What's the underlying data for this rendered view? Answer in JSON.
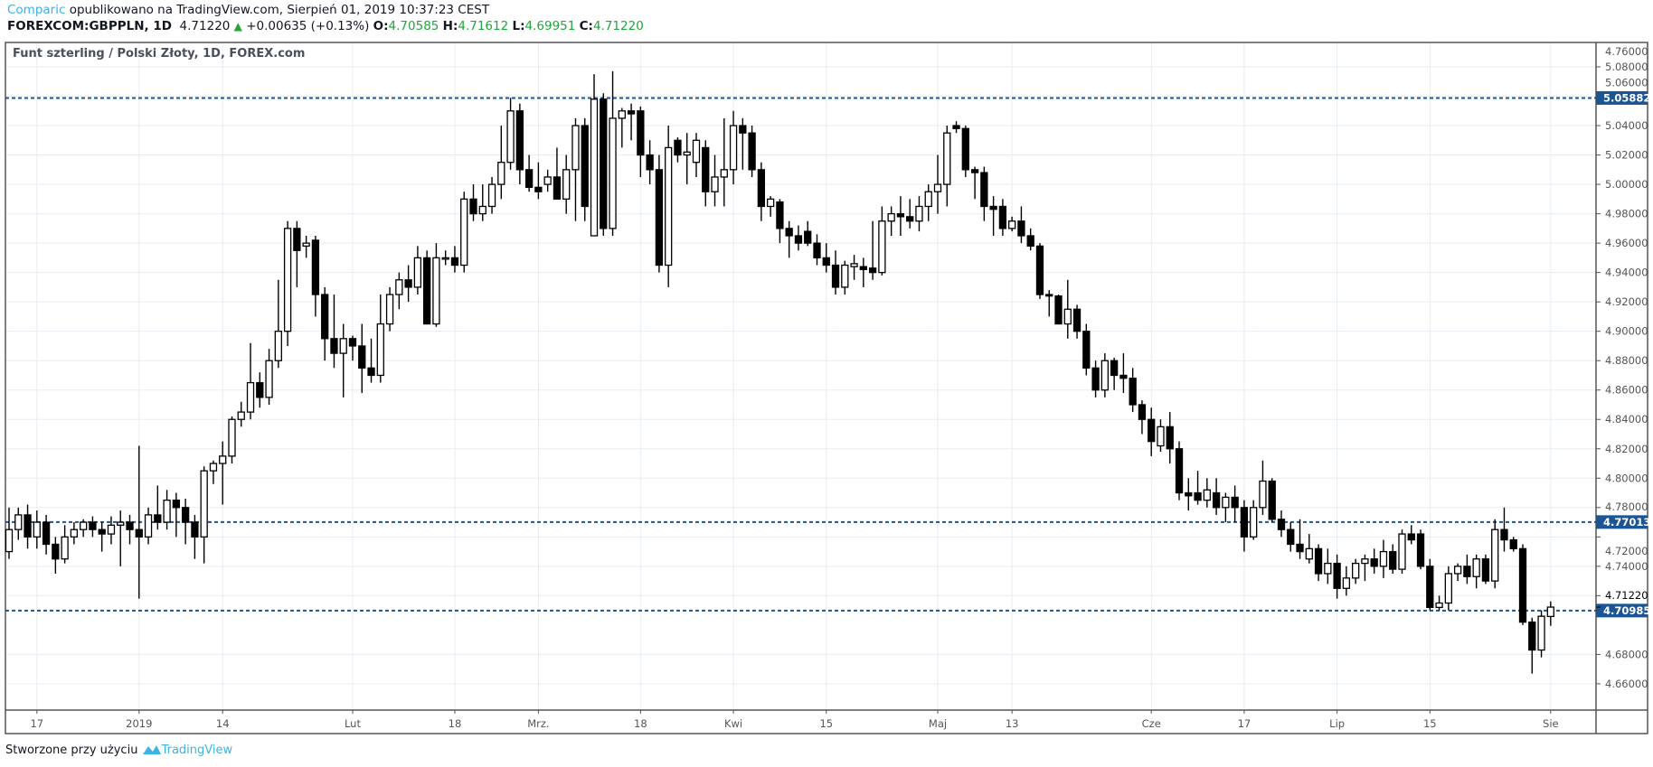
{
  "header": {
    "author": "Comparic",
    "published": "opublikowano na TradingView.com, Sierpień 01, 2019 10:37:23 CEST",
    "symbol": "FOREXCOM:GBPPLN, 1D",
    "last": "4.71220",
    "change": "+0.00635 (+0.13%)",
    "o_label": "O:",
    "o": "4.70585",
    "h_label": "H:",
    "h": "4.71612",
    "l_label": "L:",
    "l": "4.69951",
    "c_label": "C:",
    "c": "4.71220"
  },
  "footer": {
    "text": "Stworzone przy użyciu",
    "brand": "TradingView"
  },
  "colors": {
    "up_fill": "#ffffff",
    "down_fill": "#000000",
    "level": "#1c5594",
    "grid": "#e6edf3",
    "brand": "#3bb3e4",
    "green": "#1fa63a"
  },
  "chart_data": {
    "type": "candlestick",
    "title": "Funt szterling / Polski Złoty, 1D, FOREX.com",
    "ylim": [
      4.645,
      5.096
    ],
    "y_ticks": [
      "5.08000",
      "5.06000",
      "5.04000",
      "5.02000",
      "5.00000",
      "4.98000",
      "4.96000",
      "4.94000",
      "4.92000",
      "4.90000",
      "4.88000",
      "4.86000",
      "4.84000",
      "4.82000",
      "4.80000",
      "4.78000",
      "4.76000",
      "4.74000",
      "4.72000",
      "4.68000",
      "4.66000"
    ],
    "x_ticks": [
      {
        "label": "17",
        "index": 3
      },
      {
        "label": "2019",
        "index": 14
      },
      {
        "label": "14",
        "index": 23
      },
      {
        "label": "Lut",
        "index": 37
      },
      {
        "label": "18",
        "index": 48
      },
      {
        "label": "Mrz.",
        "index": 57
      },
      {
        "label": "18",
        "index": 68
      },
      {
        "label": "Kwi",
        "index": 78
      },
      {
        "label": "15",
        "index": 88
      },
      {
        "label": "Maj",
        "index": 100
      },
      {
        "label": "13",
        "index": 108
      },
      {
        "label": "Cze",
        "index": 123
      },
      {
        "label": "17",
        "index": 133
      },
      {
        "label": "Lip",
        "index": 143
      },
      {
        "label": "15",
        "index": 153
      },
      {
        "label": "Sie",
        "index": 166
      }
    ],
    "levels": [
      {
        "value": 5.05882,
        "label": "5.05882"
      },
      {
        "value": 4.77013,
        "label": "4.77013"
      },
      {
        "value": 4.70985,
        "label": "4.70985"
      }
    ],
    "last_price": {
      "value": 4.7122,
      "label": "4.71220"
    },
    "ohlc": [
      [
        4.75,
        4.78,
        4.745,
        4.765
      ],
      [
        4.765,
        4.78,
        4.758,
        4.775
      ],
      [
        4.775,
        4.782,
        4.752,
        4.76
      ],
      [
        4.76,
        4.778,
        4.752,
        4.77
      ],
      [
        4.77,
        4.775,
        4.748,
        4.755
      ],
      [
        4.755,
        4.76,
        4.735,
        4.745
      ],
      [
        4.745,
        4.768,
        4.742,
        4.76
      ],
      [
        4.76,
        4.77,
        4.755,
        4.765
      ],
      [
        4.765,
        4.772,
        4.76,
        4.77
      ],
      [
        4.77,
        4.774,
        4.76,
        4.765
      ],
      [
        4.765,
        4.77,
        4.75,
        4.762
      ],
      [
        4.762,
        4.774,
        4.755,
        4.768
      ],
      [
        4.768,
        4.778,
        4.74,
        4.77
      ],
      [
        4.77,
        4.775,
        4.755,
        4.765
      ],
      [
        4.765,
        4.822,
        4.718,
        4.76
      ],
      [
        4.76,
        4.78,
        4.755,
        4.775
      ],
      [
        4.775,
        4.795,
        4.765,
        4.77
      ],
      [
        4.77,
        4.792,
        4.765,
        4.785
      ],
      [
        4.785,
        4.79,
        4.76,
        4.78
      ],
      [
        4.78,
        4.786,
        4.755,
        4.77
      ],
      [
        4.77,
        4.775,
        4.745,
        4.76
      ],
      [
        4.76,
        4.808,
        4.742,
        4.805
      ],
      [
        4.805,
        4.812,
        4.796,
        4.81
      ],
      [
        4.81,
        4.825,
        4.782,
        4.815
      ],
      [
        4.815,
        4.842,
        4.81,
        4.84
      ],
      [
        4.84,
        4.852,
        4.835,
        4.845
      ],
      [
        4.845,
        4.892,
        4.84,
        4.865
      ],
      [
        4.865,
        4.872,
        4.848,
        4.855
      ],
      [
        4.855,
        4.888,
        4.85,
        4.88
      ],
      [
        4.88,
        4.935,
        4.875,
        4.9
      ],
      [
        4.9,
        4.975,
        4.89,
        4.97
      ],
      [
        4.97,
        4.975,
        4.93,
        4.955
      ],
      [
        4.958,
        4.965,
        4.95,
        4.96
      ],
      [
        4.962,
        4.965,
        4.91,
        4.925
      ],
      [
        4.925,
        4.93,
        4.88,
        4.895
      ],
      [
        4.895,
        4.925,
        4.875,
        4.885
      ],
      [
        4.885,
        4.905,
        4.855,
        4.895
      ],
      [
        4.895,
        4.897,
        4.88,
        4.89
      ],
      [
        4.89,
        4.905,
        4.858,
        4.875
      ],
      [
        4.875,
        4.895,
        4.865,
        4.87
      ],
      [
        4.87,
        4.925,
        4.865,
        4.905
      ],
      [
        4.905,
        4.93,
        4.9,
        4.925
      ],
      [
        4.925,
        4.94,
        4.915,
        4.935
      ],
      [
        4.935,
        4.945,
        4.92,
        4.93
      ],
      [
        4.93,
        4.958,
        4.925,
        4.95
      ],
      [
        4.95,
        4.955,
        4.905,
        4.905
      ],
      [
        4.905,
        4.96,
        4.903,
        4.95
      ],
      [
        4.95,
        4.955,
        4.945,
        4.95
      ],
      [
        4.95,
        4.958,
        4.94,
        4.945
      ],
      [
        4.945,
        4.995,
        4.94,
        4.99
      ],
      [
        4.99,
        5.0,
        4.975,
        4.98
      ],
      [
        4.98,
        5.0,
        4.975,
        4.985
      ],
      [
        4.985,
        5.005,
        4.98,
        5.0
      ],
      [
        5.0,
        5.04,
        4.99,
        5.015
      ],
      [
        5.015,
        5.059,
        5.01,
        5.05
      ],
      [
        5.05,
        5.055,
        5.0,
        5.01
      ],
      [
        5.01,
        5.02,
        4.995,
        4.998
      ],
      [
        4.998,
        5.015,
        4.99,
        4.995
      ],
      [
        5.0,
        5.01,
        4.995,
        5.005
      ],
      [
        5.005,
        5.025,
        4.99,
        4.99
      ],
      [
        4.99,
        5.02,
        4.98,
        5.01
      ],
      [
        5.01,
        5.045,
        4.975,
        5.04
      ],
      [
        5.04,
        5.045,
        4.975,
        4.985
      ],
      [
        4.965,
        5.075,
        4.965,
        5.058
      ],
      [
        5.058,
        5.062,
        4.965,
        4.97
      ],
      [
        4.97,
        5.077,
        4.965,
        5.045
      ],
      [
        5.045,
        5.052,
        5.025,
        5.05
      ],
      [
        5.05,
        5.055,
        5.03,
        5.048
      ],
      [
        5.05,
        5.053,
        5.005,
        5.02
      ],
      [
        5.02,
        5.03,
        5.0,
        5.01
      ],
      [
        5.01,
        5.02,
        4.94,
        4.945
      ],
      [
        4.945,
        5.04,
        4.93,
        5.025
      ],
      [
        5.03,
        5.032,
        5.015,
        5.02
      ],
      [
        5.02,
        5.035,
        5.0,
        5.022
      ],
      [
        5.015,
        5.035,
        5.005,
        5.03
      ],
      [
        5.025,
        5.03,
        4.985,
        4.995
      ],
      [
        4.995,
        5.02,
        4.985,
        5.005
      ],
      [
        5.005,
        5.045,
        4.985,
        5.01
      ],
      [
        5.01,
        5.05,
        5.0,
        5.04
      ],
      [
        5.04,
        5.045,
        5.01,
        5.035
      ],
      [
        5.035,
        5.04,
        5.005,
        5.01
      ],
      [
        5.01,
        5.015,
        4.975,
        4.985
      ],
      [
        4.985,
        4.992,
        4.978,
        4.99
      ],
      [
        4.988,
        4.99,
        4.96,
        4.97
      ],
      [
        4.97,
        4.975,
        4.95,
        4.965
      ],
      [
        4.965,
        4.972,
        4.955,
        4.96
      ],
      [
        4.968,
        4.975,
        4.958,
        4.96
      ],
      [
        4.96,
        4.966,
        4.945,
        4.95
      ],
      [
        4.95,
        4.96,
        4.94,
        4.945
      ],
      [
        4.945,
        4.955,
        4.925,
        4.93
      ],
      [
        4.93,
        4.948,
        4.925,
        4.945
      ],
      [
        4.944,
        4.952,
        4.935,
        4.946
      ],
      [
        4.944,
        4.95,
        4.93,
        4.942
      ],
      [
        4.943,
        4.975,
        4.935,
        4.94
      ],
      [
        4.94,
        4.985,
        4.938,
        4.975
      ],
      [
        4.975,
        4.985,
        4.965,
        4.98
      ],
      [
        4.98,
        4.992,
        4.965,
        4.978
      ],
      [
        4.978,
        4.99,
        4.97,
        4.975
      ],
      [
        4.975,
        4.992,
        4.968,
        4.985
      ],
      [
        4.985,
        5.0,
        4.975,
        4.995
      ],
      [
        4.995,
        5.02,
        4.98,
        5.0
      ],
      [
        5.0,
        5.04,
        4.985,
        5.035
      ],
      [
        5.04,
        5.043,
        5.035,
        5.038
      ],
      [
        5.038,
        5.04,
        5.005,
        5.01
      ],
      [
        5.01,
        5.012,
        4.99,
        5.008
      ],
      [
        5.008,
        5.012,
        4.975,
        4.985
      ],
      [
        4.985,
        4.992,
        4.965,
        4.983
      ],
      [
        4.985,
        4.99,
        4.965,
        4.97
      ],
      [
        4.97,
        4.978,
        4.968,
        4.975
      ],
      [
        4.975,
        4.985,
        4.96,
        4.965
      ],
      [
        4.965,
        4.97,
        4.955,
        4.958
      ],
      [
        4.958,
        4.96,
        4.922,
        4.925
      ],
      [
        4.925,
        4.928,
        4.91,
        4.924
      ],
      [
        4.924,
        4.925,
        4.905,
        4.905
      ],
      [
        4.905,
        4.935,
        4.895,
        4.915
      ],
      [
        4.915,
        4.918,
        4.895,
        4.9
      ],
      [
        4.9,
        4.905,
        4.87,
        4.875
      ],
      [
        4.875,
        4.88,
        4.855,
        4.86
      ],
      [
        4.86,
        4.885,
        4.855,
        4.88
      ],
      [
        4.88,
        4.882,
        4.86,
        4.87
      ],
      [
        4.87,
        4.885,
        4.858,
        4.868
      ],
      [
        4.868,
        4.875,
        4.845,
        4.85
      ],
      [
        4.85,
        4.853,
        4.83,
        4.84
      ],
      [
        4.84,
        4.848,
        4.815,
        4.825
      ],
      [
        4.822,
        4.84,
        4.818,
        4.835
      ],
      [
        4.835,
        4.845,
        4.81,
        4.82
      ],
      [
        4.82,
        4.825,
        4.785,
        4.79
      ],
      [
        4.79,
        4.8,
        4.778,
        4.788
      ],
      [
        4.79,
        4.805,
        4.782,
        4.785
      ],
      [
        4.785,
        4.8,
        4.78,
        4.792
      ],
      [
        4.79,
        4.8,
        4.775,
        4.78
      ],
      [
        4.78,
        4.79,
        4.77,
        4.787
      ],
      [
        4.787,
        4.795,
        4.77,
        4.78
      ],
      [
        4.78,
        4.785,
        4.75,
        4.76
      ],
      [
        4.76,
        4.785,
        4.758,
        4.78
      ],
      [
        4.78,
        4.812,
        4.775,
        4.798
      ],
      [
        4.798,
        4.8,
        4.77,
        4.772
      ],
      [
        4.772,
        4.778,
        4.76,
        4.765
      ],
      [
        4.765,
        4.77,
        4.75,
        4.755
      ],
      [
        4.755,
        4.772,
        4.745,
        4.75
      ],
      [
        4.745,
        4.762,
        4.742,
        4.752
      ],
      [
        4.752,
        4.755,
        4.73,
        4.735
      ],
      [
        4.735,
        4.752,
        4.728,
        4.742
      ],
      [
        4.742,
        4.748,
        4.718,
        4.725
      ],
      [
        4.725,
        4.74,
        4.72,
        4.732
      ],
      [
        4.732,
        4.745,
        4.728,
        4.742
      ],
      [
        4.742,
        4.748,
        4.73,
        4.745
      ],
      [
        4.745,
        4.752,
        4.735,
        4.74
      ],
      [
        4.74,
        4.758,
        4.732,
        4.75
      ],
      [
        4.75,
        4.755,
        4.735,
        4.738
      ],
      [
        4.738,
        4.765,
        4.735,
        4.762
      ],
      [
        4.762,
        4.768,
        4.755,
        4.758
      ],
      [
        4.762,
        4.765,
        4.738,
        4.74
      ],
      [
        4.74,
        4.745,
        4.71,
        4.712
      ],
      [
        4.712,
        4.72,
        4.71,
        4.715
      ],
      [
        4.715,
        4.74,
        4.71,
        4.735
      ],
      [
        4.735,
        4.742,
        4.73,
        4.74
      ],
      [
        4.74,
        4.748,
        4.728,
        4.733
      ],
      [
        4.733,
        4.748,
        4.725,
        4.745
      ],
      [
        4.745,
        4.748,
        4.728,
        4.73
      ],
      [
        4.73,
        4.772,
        4.725,
        4.765
      ],
      [
        4.765,
        4.78,
        4.75,
        4.758
      ],
      [
        4.758,
        4.76,
        4.75,
        4.752
      ],
      [
        4.752,
        4.755,
        4.7,
        4.702
      ],
      [
        4.702,
        4.705,
        4.667,
        4.683
      ],
      [
        4.683,
        4.71,
        4.678,
        4.706
      ],
      [
        4.70585,
        4.71612,
        4.69951,
        4.7122
      ]
    ]
  }
}
